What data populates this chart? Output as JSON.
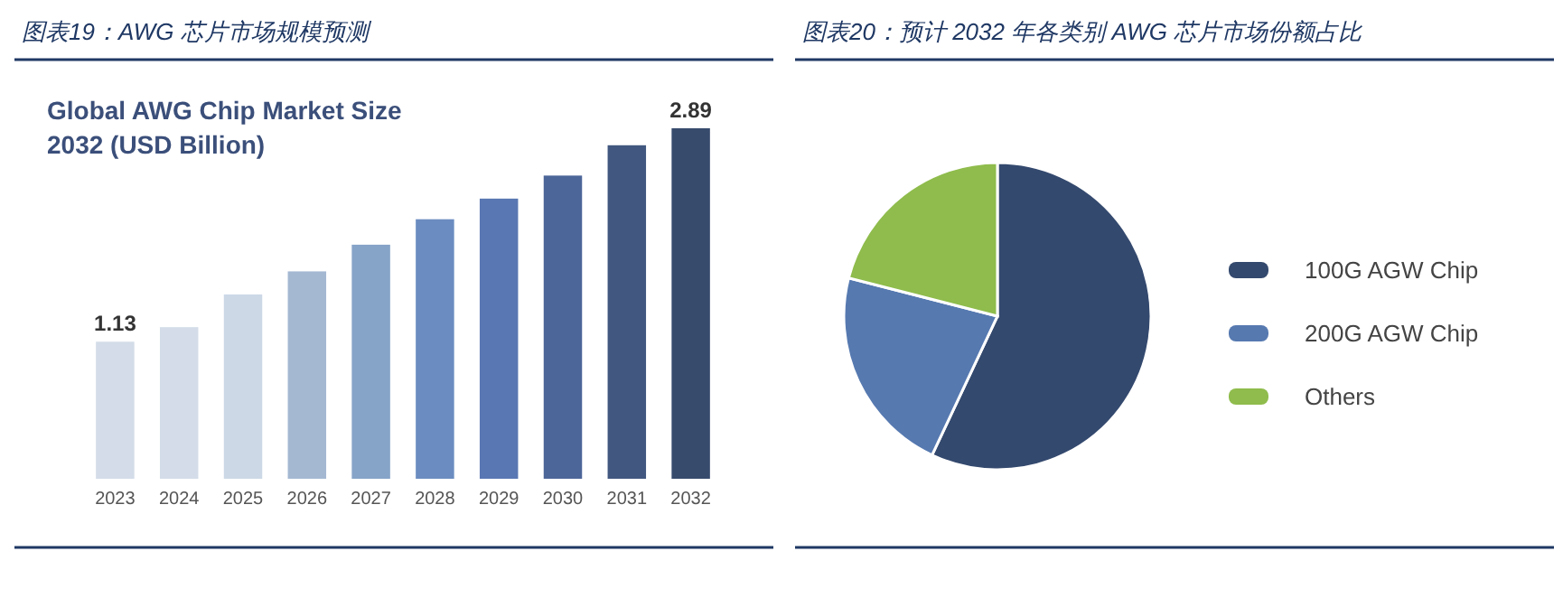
{
  "chart_data": [
    {
      "type": "bar",
      "title": "图表19：AWG 芯片市场规模预测",
      "subtitle": "Global AWG Chip Market Size\n2032 (USD Billion)",
      "categories": [
        "2023",
        "2024",
        "2025",
        "2026",
        "2027",
        "2028",
        "2029",
        "2030",
        "2031",
        "2032"
      ],
      "values": [
        1.13,
        1.25,
        1.52,
        1.71,
        1.93,
        2.14,
        2.31,
        2.5,
        2.75,
        2.89
      ],
      "colors": [
        "#d3dce8",
        "#d3dce8",
        "#ccd8e6",
        "#a4b8d2",
        "#86a3c8",
        "#6b8cc0",
        "#5977b2",
        "#4d6699",
        "#41577f",
        "#374b6d"
      ],
      "value_labels": [
        "1.13",
        null,
        null,
        null,
        null,
        null,
        null,
        null,
        null,
        "2.89"
      ],
      "grid": false
    },
    {
      "type": "pie",
      "title": "图表20：预计 2032 年各类别 AWG 芯片市场份额占比",
      "categories": [
        "100G AGW Chip",
        "200G AGW Chip",
        "Others"
      ],
      "values": [
        57,
        22,
        21
      ],
      "colors": [
        "#34496e",
        "#5679b0",
        "#8fbc4c"
      ],
      "legend": "right"
    }
  ]
}
